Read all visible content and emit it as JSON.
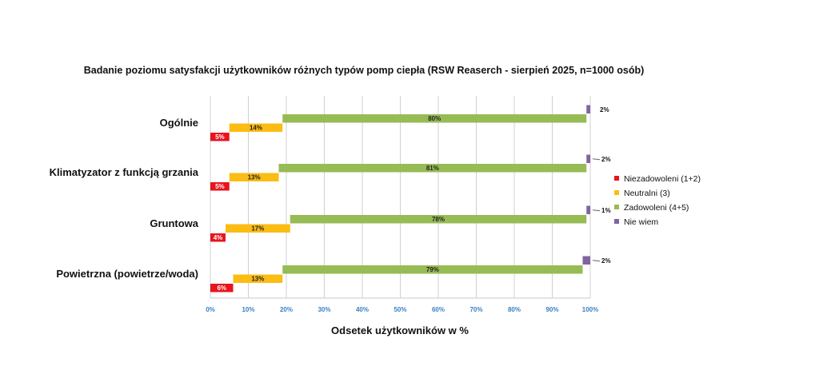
{
  "chart_data": {
    "type": "bar",
    "stacked": true,
    "orientation": "horizontal",
    "title": "Badanie poziomu satysfakcji użytkowników różnych typów pomp ciepła (RSW Reaserch - sierpień 2025, n=1000 osób)",
    "xlabel": "Odsetek użytkowników w %",
    "ylabel": "",
    "xlim": [
      0,
      100
    ],
    "x_ticks": [
      "0%",
      "10%",
      "20%",
      "30%",
      "40%",
      "50%",
      "60%",
      "70%",
      "80%",
      "90%",
      "100%"
    ],
    "grid": true,
    "legend_position": "right",
    "categories": [
      "Ogólnie",
      "Klimatyzator z funkcją grzania",
      "Gruntowa",
      "Powietrzna (powietrze/woda)"
    ],
    "series": [
      {
        "name": "Niezadowoleni (1+2)",
        "color": "#e8141e",
        "values": [
          5,
          5,
          4,
          6
        ],
        "labels": [
          "5%",
          "5%",
          "4%",
          "6%"
        ]
      },
      {
        "name": "Neutralni (3)",
        "color": "#fbbc14",
        "values": [
          14,
          13,
          17,
          13
        ],
        "labels": [
          "14%",
          "13%",
          "17%",
          "13%"
        ]
      },
      {
        "name": "Zadowoleni (4+5)",
        "color": "#97bb55",
        "values": [
          80,
          81,
          78,
          79
        ],
        "labels": [
          "80%",
          "81%",
          "78%",
          "79%"
        ]
      },
      {
        "name": "Nie wiem",
        "color": "#8064a2",
        "values": [
          2,
          2,
          1,
          2
        ],
        "labels": [
          "2%",
          "2%",
          "1%",
          "2%"
        ]
      }
    ]
  }
}
